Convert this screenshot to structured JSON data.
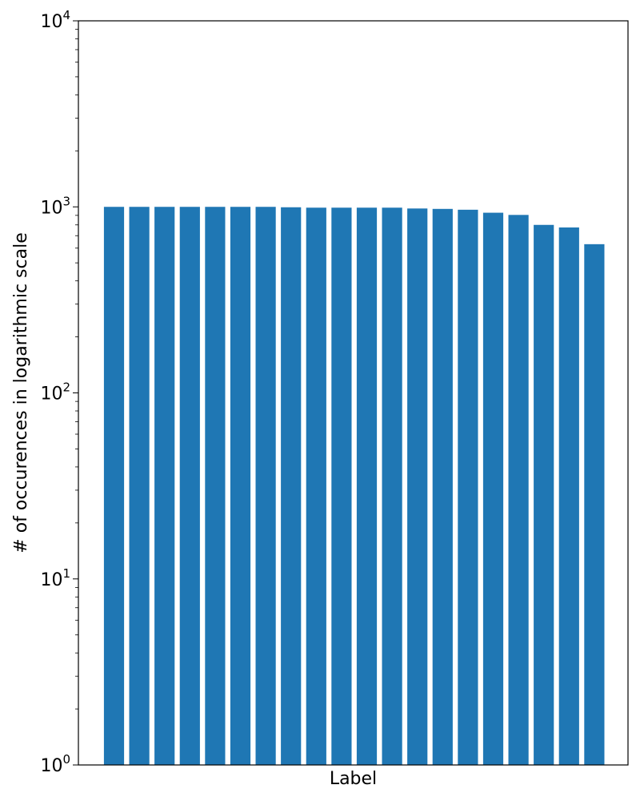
{
  "chart_data": {
    "type": "bar",
    "yscale": "log",
    "ylim": [
      1,
      10000
    ],
    "xlabel": "Label",
    "ylabel": "# of occurences in logarithmic scale",
    "yticks": [
      {
        "value": 1,
        "base": "10",
        "exp": "0"
      },
      {
        "value": 10,
        "base": "10",
        "exp": "1"
      },
      {
        "value": 100,
        "base": "10",
        "exp": "2"
      },
      {
        "value": 1000,
        "base": "10",
        "exp": "3"
      },
      {
        "value": 10000,
        "base": "10",
        "exp": "4"
      }
    ],
    "xticks_visible": false,
    "grid": false,
    "legend": "none",
    "bar_color": "#1f77b4",
    "values": [
      1000,
      1000,
      1000,
      1000,
      1000,
      1000,
      1000,
      995,
      990,
      990,
      990,
      990,
      980,
      975,
      965,
      930,
      905,
      800,
      775,
      630
    ]
  }
}
